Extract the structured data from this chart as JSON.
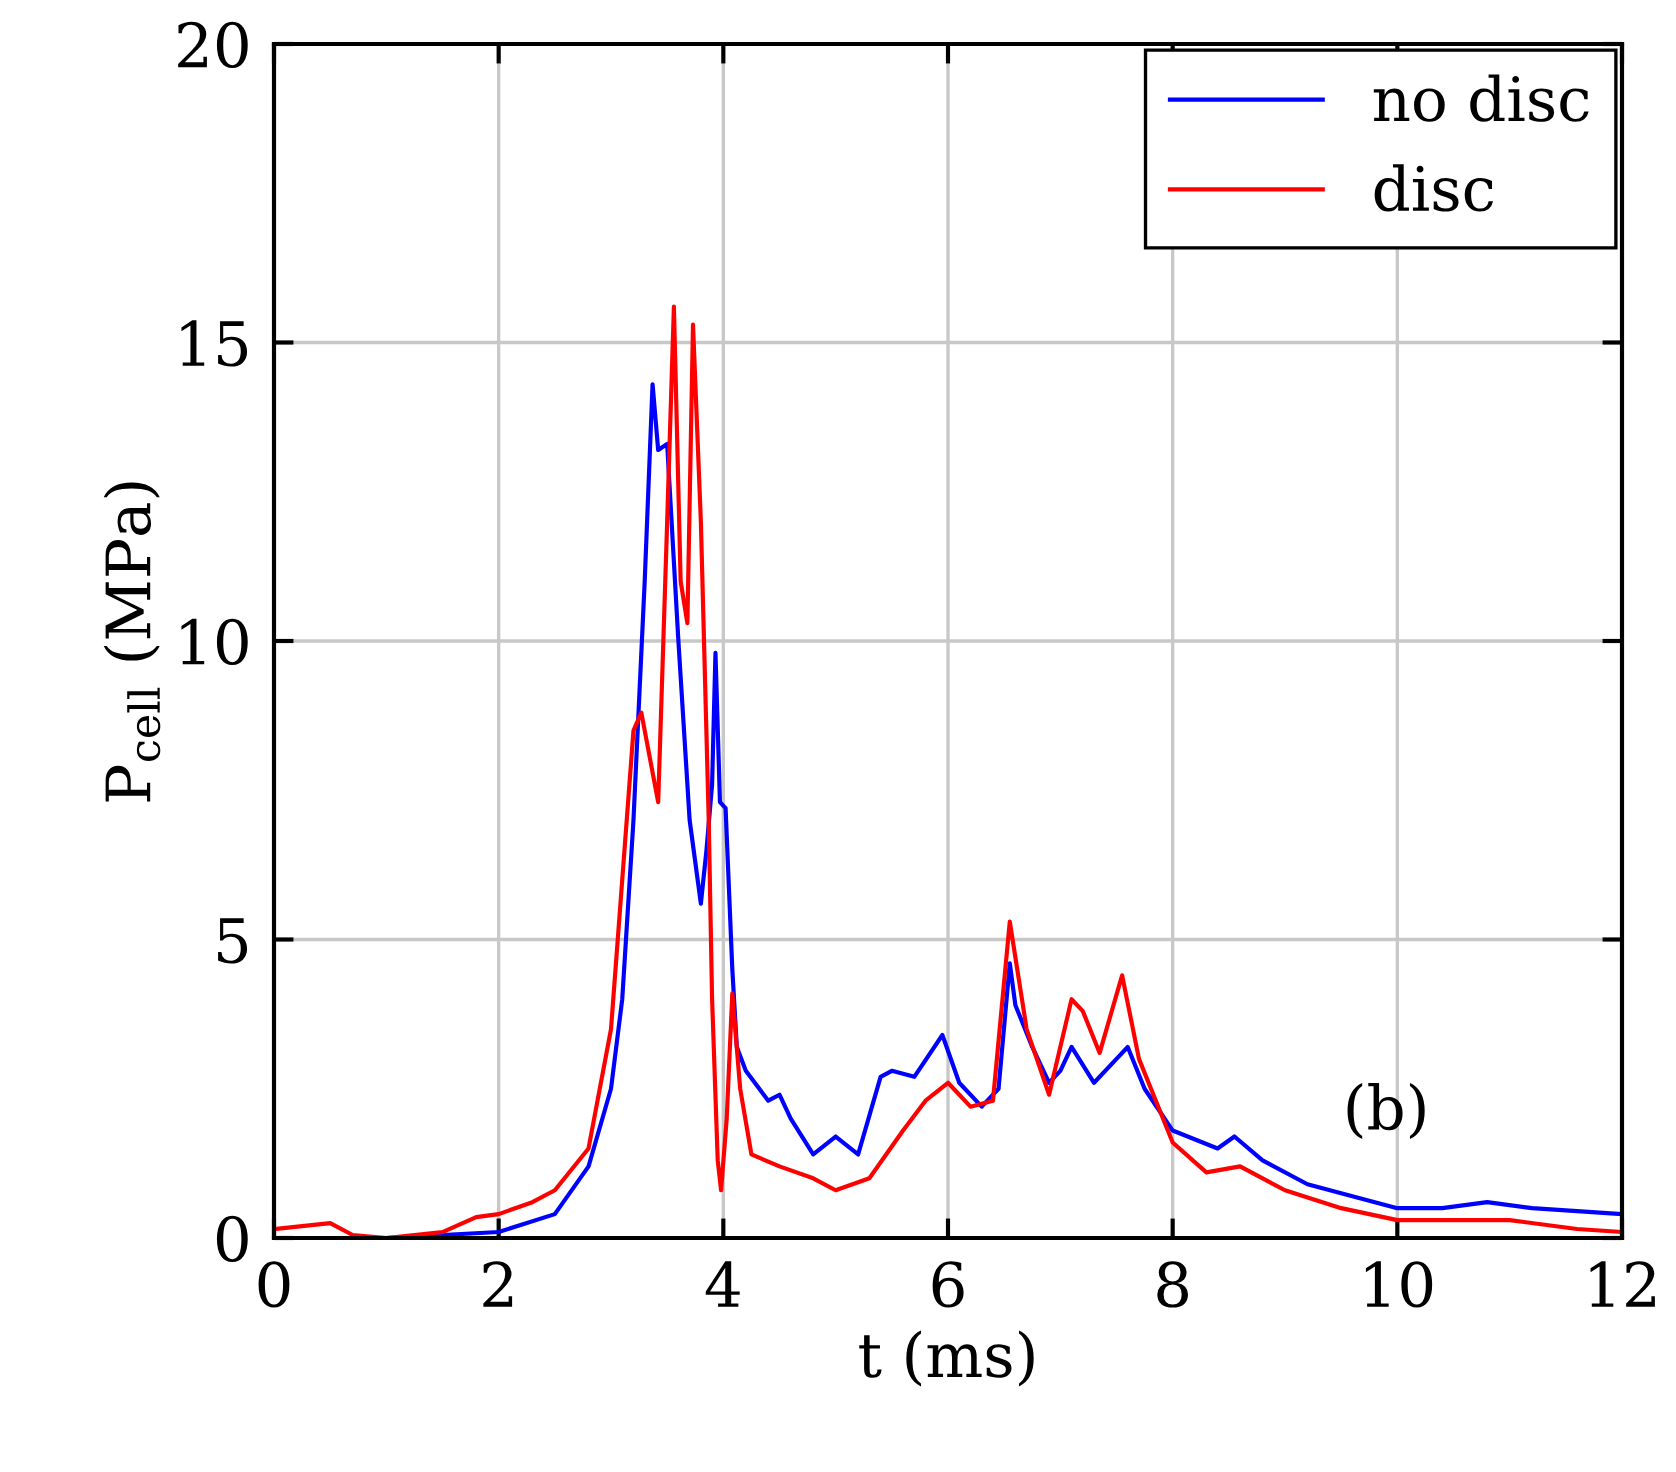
{
  "chart_data": {
    "type": "line",
    "xlabel": "t (ms)",
    "ylabel": "P$_{cell}$ (MPa)",
    "xlim": [
      0,
      12
    ],
    "xticks": [
      0,
      2,
      4,
      6,
      8,
      10,
      12
    ],
    "ylim": [
      0,
      20
    ],
    "yticks": [
      0,
      5,
      10,
      15,
      20
    ],
    "grid": true,
    "legend": "top right",
    "annotations": [
      "(b)"
    ],
    "series": [
      {
        "name": "no disc",
        "color": "#0000ff",
        "x": [
          0,
          1,
          2,
          2.5,
          2.8,
          3.0,
          3.1,
          3.2,
          3.3,
          3.37,
          3.42,
          3.5,
          3.6,
          3.7,
          3.8,
          3.85,
          3.9,
          3.93,
          3.97,
          4.02,
          4.08,
          4.12,
          4.2,
          4.4,
          4.5,
          4.6,
          4.8,
          5.0,
          5.2,
          5.4,
          5.5,
          5.7,
          5.95,
          6.1,
          6.3,
          6.45,
          6.55,
          6.6,
          6.75,
          6.9,
          7.0,
          7.1,
          7.3,
          7.5,
          7.6,
          7.75,
          8.0,
          8.4,
          8.55,
          8.8,
          9.2,
          9.6,
          10.0,
          10.4,
          10.8,
          11.2,
          12
        ],
        "values": [
          0,
          0,
          0.1,
          0.4,
          1.2,
          2.5,
          4,
          7,
          11,
          14.3,
          13.2,
          13.3,
          10,
          7,
          5.6,
          6.5,
          7.6,
          9.8,
          7.3,
          7.2,
          4.5,
          3.2,
          2.8,
          2.3,
          2.4,
          2.0,
          1.4,
          1.7,
          1.4,
          2.7,
          2.8,
          2.7,
          3.4,
          2.6,
          2.2,
          2.5,
          4.6,
          3.9,
          3.2,
          2.6,
          2.8,
          3.2,
          2.6,
          3.0,
          3.2,
          2.5,
          1.8,
          1.5,
          1.7,
          1.3,
          0.9,
          0.7,
          0.5,
          0.5,
          0.6,
          0.5,
          0.4
        ]
      },
      {
        "name": "disc",
        "color": "#ff0000",
        "x": [
          0,
          0.5,
          0.7,
          1.0,
          1.5,
          1.8,
          2.0,
          2.3,
          2.5,
          2.8,
          3.0,
          3.1,
          3.2,
          3.27,
          3.35,
          3.42,
          3.5,
          3.56,
          3.62,
          3.68,
          3.73,
          3.8,
          3.87,
          3.9,
          3.95,
          3.98,
          4.03,
          4.08,
          4.15,
          4.25,
          4.5,
          4.8,
          5.0,
          5.3,
          5.6,
          5.8,
          6.0,
          6.2,
          6.4,
          6.55,
          6.7,
          6.9,
          7.1,
          7.2,
          7.35,
          7.55,
          7.7,
          8.0,
          8.3,
          8.6,
          9.0,
          9.5,
          10.0,
          11,
          11.6,
          12
        ],
        "values": [
          0.15,
          0.25,
          0.05,
          0,
          0.1,
          0.35,
          0.4,
          0.6,
          0.8,
          1.5,
          3.5,
          6,
          8.5,
          8.8,
          8,
          7.3,
          12,
          15.6,
          11,
          10.3,
          15.3,
          12,
          7,
          4,
          1.3,
          0.8,
          2,
          4.1,
          2.5,
          1.4,
          1.2,
          1.0,
          0.8,
          1.0,
          1.8,
          2.3,
          2.6,
          2.2,
          2.3,
          5.3,
          3.5,
          2.4,
          4.0,
          3.8,
          3.1,
          4.4,
          3.0,
          1.6,
          1.1,
          1.2,
          0.8,
          0.5,
          0.3,
          0.3,
          0.15,
          0.1
        ]
      }
    ]
  }
}
